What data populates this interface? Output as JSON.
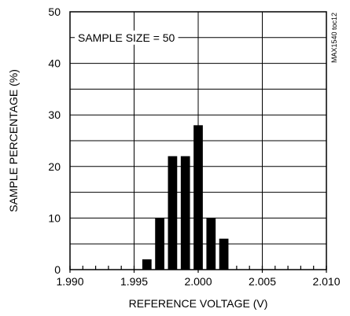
{
  "chart_data": {
    "type": "bar",
    "xlabel": "REFERENCE VOLTAGE (V)",
    "ylabel": "SAMPLE PERCENTAGE (%)",
    "xlim": [
      1.99,
      2.01
    ],
    "ylim": [
      0,
      50
    ],
    "x_ticks": [
      1.99,
      1.995,
      2.0,
      2.005,
      2.01
    ],
    "x_tick_labels": [
      "1.990",
      "1.995",
      "2.000",
      "2.005",
      "2.010"
    ],
    "x_minor_step": 0.001,
    "y_ticks": [
      0,
      10,
      20,
      30,
      40,
      50
    ],
    "y_tick_labels": [
      "0",
      "10",
      "20",
      "30",
      "40",
      "50"
    ],
    "y_minor_step": 5,
    "grid": true,
    "x": [
      1.996,
      1.997,
      1.998,
      1.999,
      2.0,
      2.001,
      2.002
    ],
    "values": [
      2,
      10,
      22,
      22,
      28,
      10,
      6
    ],
    "annotation": "SAMPLE SIZE = 50",
    "side_code": "MAX1540 toc12",
    "bar_color": "#000000"
  }
}
